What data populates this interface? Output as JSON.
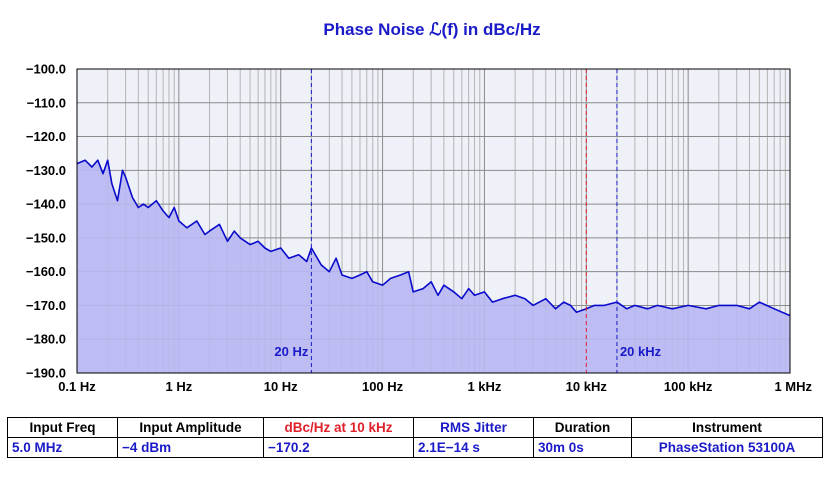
{
  "chart_data": {
    "type": "area",
    "title": "Phase Noise ℒ(f) in dBc/Hz",
    "xlabel": "",
    "ylabel": "",
    "x_scale": "log",
    "xlim": [
      0.1,
      1000000
    ],
    "ylim": [
      -190,
      -100
    ],
    "y_ticks": [
      -100.0,
      -110.0,
      -120.0,
      -130.0,
      -140.0,
      -150.0,
      -160.0,
      -170.0,
      -180.0,
      -190.0
    ],
    "y_tick_labels": [
      "−100.0",
      "−110.0",
      "−120.0",
      "−130.0",
      "−140.0",
      "−150.0",
      "−160.0",
      "−170.0",
      "−180.0",
      "−190.0"
    ],
    "x_ticks": [
      0.1,
      1,
      10,
      100,
      1000,
      10000,
      100000,
      1000000
    ],
    "x_tick_labels": [
      "0.1 Hz",
      "1 Hz",
      "10 Hz",
      "100 Hz",
      "1 kHz",
      "10 kHz",
      "100 kHz",
      "1 MHz"
    ],
    "grid": true,
    "markers": [
      {
        "x": 20,
        "label": "20 Hz",
        "color": "#1a1ac8"
      },
      {
        "x": 10000,
        "label": "",
        "color": "#e0202a"
      },
      {
        "x": 20000,
        "label": "20 kHz",
        "color": "#1a1ac8"
      }
    ],
    "series": [
      {
        "color": "#0a0acc",
        "fill": "#b7b7f2",
        "x": [
          0.1,
          0.12,
          0.14,
          0.16,
          0.18,
          0.2,
          0.22,
          0.25,
          0.28,
          0.3,
          0.35,
          0.4,
          0.45,
          0.5,
          0.6,
          0.7,
          0.8,
          0.9,
          1,
          1.2,
          1.5,
          1.8,
          2,
          2.5,
          3,
          3.5,
          4,
          5,
          6,
          7,
          8,
          10,
          12,
          15,
          18,
          20,
          25,
          30,
          35,
          40,
          50,
          60,
          70,
          80,
          100,
          120,
          150,
          180,
          200,
          250,
          300,
          350,
          400,
          500,
          600,
          700,
          800,
          1000,
          1200,
          1500,
          2000,
          2500,
          3000,
          4000,
          5000,
          6000,
          7000,
          8000,
          10000,
          12000,
          15000,
          20000,
          25000,
          30000,
          40000,
          50000,
          70000,
          100000,
          150000,
          200000,
          300000,
          400000,
          500000,
          700000,
          1000000
        ],
        "y": [
          -128,
          -127,
          -129,
          -127,
          -131,
          -127,
          -134,
          -139,
          -130,
          -132,
          -138,
          -141,
          -140,
          -141,
          -139,
          -142,
          -144,
          -141,
          -145,
          -147,
          -145,
          -149,
          -148,
          -146,
          -151,
          -148,
          -150,
          -152,
          -151,
          -153,
          -154,
          -153,
          -156,
          -155,
          -157,
          -153,
          -158,
          -160,
          -156,
          -161,
          -162,
          -161,
          -160,
          -163,
          -164,
          -162,
          -161,
          -160,
          -166,
          -165,
          -163,
          -167,
          -164,
          -166,
          -168,
          -165,
          -167,
          -166,
          -169,
          -168,
          -167,
          -168,
          -170,
          -168,
          -171,
          -169,
          -170,
          -172,
          -171,
          -170,
          -170,
          -169,
          -171,
          -170,
          -171,
          -170,
          -171,
          -170,
          -171,
          -170,
          -170,
          -171,
          -169,
          -171,
          -173
        ]
      }
    ]
  },
  "info_table": {
    "headers": [
      "Input Freq",
      "Input Amplitude",
      "dBc/Hz at 10 kHz",
      "RMS Jitter",
      "Duration",
      "Instrument"
    ],
    "values": [
      "5.0 MHz",
      "−4 dBm",
      "−170.2",
      "2.1E−14 s",
      "30m 0s",
      "PhaseStation 53100A"
    ],
    "highlight_color": "#e0202a",
    "value_color": "#1a1ac8"
  }
}
